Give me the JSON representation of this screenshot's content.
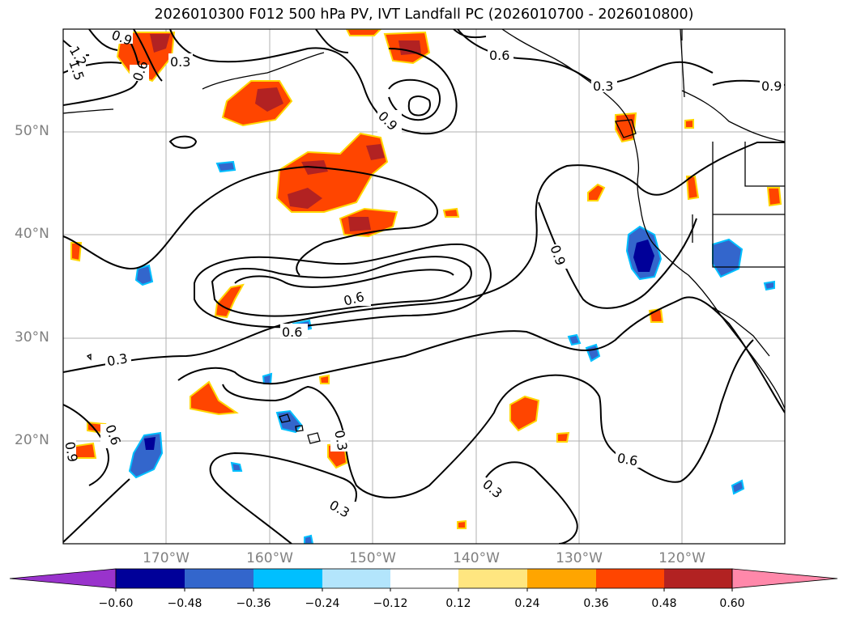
{
  "title": "2026010300 F012 500 hPa PV, IVT Landfall PC (2026010700 - 2026010800)",
  "map": {
    "region": "North Pacific / West Coast of North America",
    "lat_labels": [
      "50°N",
      "40°N",
      "30°N",
      "20°N"
    ],
    "lon_labels": [
      "170°W",
      "160°W",
      "150°W",
      "140°W",
      "130°W",
      "120°W"
    ],
    "contour_labels": [
      "0.9",
      "1.2",
      "1.5",
      "0.6",
      "0.3",
      "0.9",
      "0.6",
      "0.3",
      "0.9",
      "0.9",
      "0.6",
      "0.6",
      "0.3",
      "0.6",
      "0.9",
      "0.3",
      "0.3",
      "0.3",
      "0.6",
      "0.9",
      "0.6"
    ]
  },
  "colorbar": {
    "ticks": [
      "−0.60",
      "−0.48",
      "−0.36",
      "−0.24",
      "−0.12",
      "0.12",
      "0.24",
      "0.36",
      "0.48",
      "0.60"
    ],
    "colors": [
      "#9933cc",
      "#000099",
      "#3366cc",
      "#00bfff",
      "#b3e5fc",
      "#ffffff",
      "#ffe680",
      "#ffa500",
      "#ff4500",
      "#b22222",
      "#ff88aa"
    ]
  },
  "colors": {
    "positive_fill": "#ff4500",
    "positive_core": "#b22222",
    "positive_edge": "#ffa500",
    "negative_fill": "#3366cc",
    "negative_core": "#000099",
    "negative_edge": "#00bfff"
  }
}
